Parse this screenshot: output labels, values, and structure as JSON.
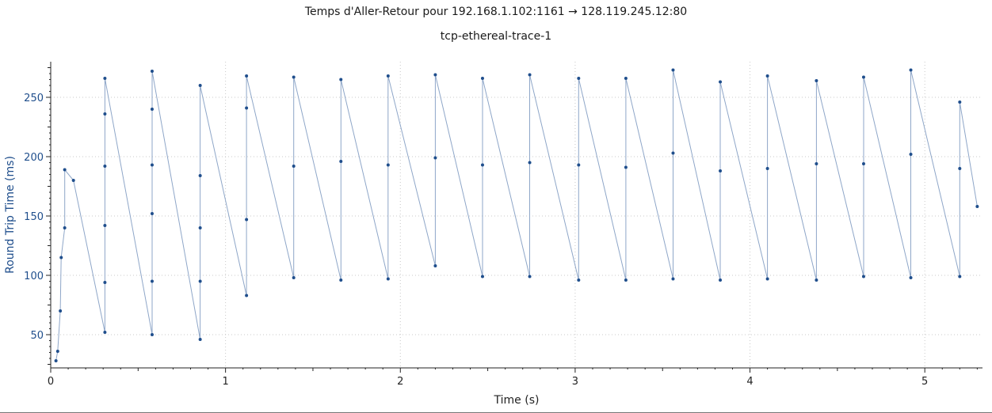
{
  "window": {
    "title": "Temps d'Aller-Retour pour 192.168.1.102:1161 → 128.119.245.12:80",
    "subtitle": "tcp-ethereal-trace-1"
  },
  "colors": {
    "series": "#1f4e8c",
    "line": "#8ea6c8",
    "axis_label": "#1f4e8c",
    "grid": "#c8c8c8"
  },
  "chart_data": {
    "type": "line",
    "title": "Temps d'Aller-Retour pour 192.168.1.102:1161 → 128.119.245.12:80",
    "subtitle": "tcp-ethereal-trace-1",
    "xlabel": "Time (s)",
    "ylabel": "Round Trip Time (ms)",
    "xlim": [
      0,
      5.33
    ],
    "ylim": [
      22,
      280
    ],
    "x_ticks": [
      0,
      1,
      2,
      3,
      4,
      5
    ],
    "y_ticks": [
      50,
      100,
      150,
      200,
      250
    ],
    "grid": true,
    "series": [
      {
        "points": [
          [
            0.03,
            28
          ],
          [
            0.04,
            36
          ],
          [
            0.055,
            70
          ],
          [
            0.06,
            115
          ],
          [
            0.08,
            140
          ],
          [
            0.08,
            189
          ],
          [
            0.13,
            180
          ],
          [
            0.31,
            52
          ],
          [
            0.31,
            94
          ],
          [
            0.31,
            142
          ],
          [
            0.31,
            192
          ],
          [
            0.31,
            236
          ],
          [
            0.31,
            266
          ],
          [
            0.58,
            50
          ],
          [
            0.58,
            95
          ],
          [
            0.58,
            152
          ],
          [
            0.58,
            193
          ],
          [
            0.58,
            240
          ],
          [
            0.58,
            272
          ],
          [
            0.855,
            46
          ],
          [
            0.855,
            95
          ],
          [
            0.855,
            140
          ],
          [
            0.855,
            184
          ],
          [
            0.855,
            260
          ],
          [
            1.12,
            83
          ],
          [
            1.12,
            147
          ],
          [
            1.12,
            241
          ],
          [
            1.12,
            268
          ],
          [
            1.39,
            98
          ],
          [
            1.39,
            192
          ],
          [
            1.39,
            267
          ],
          [
            1.66,
            96
          ],
          [
            1.66,
            196
          ],
          [
            1.66,
            265
          ],
          [
            1.93,
            97
          ],
          [
            1.93,
            193
          ],
          [
            1.93,
            268
          ],
          [
            2.2,
            108
          ],
          [
            2.2,
            199
          ],
          [
            2.2,
            269
          ],
          [
            2.47,
            99
          ],
          [
            2.47,
            193
          ],
          [
            2.47,
            266
          ],
          [
            2.74,
            99
          ],
          [
            2.74,
            195
          ],
          [
            2.74,
            269
          ],
          [
            3.02,
            96
          ],
          [
            3.02,
            193
          ],
          [
            3.02,
            266
          ],
          [
            3.29,
            96
          ],
          [
            3.29,
            191
          ],
          [
            3.29,
            266
          ],
          [
            3.56,
            97
          ],
          [
            3.56,
            203
          ],
          [
            3.56,
            273
          ],
          [
            3.83,
            96
          ],
          [
            3.83,
            188
          ],
          [
            3.83,
            263
          ],
          [
            4.1,
            97
          ],
          [
            4.1,
            190
          ],
          [
            4.1,
            268
          ],
          [
            4.38,
            96
          ],
          [
            4.38,
            194
          ],
          [
            4.38,
            264
          ],
          [
            4.65,
            99
          ],
          [
            4.65,
            194
          ],
          [
            4.65,
            267
          ],
          [
            4.92,
            98
          ],
          [
            4.92,
            202
          ],
          [
            4.92,
            273
          ],
          [
            5.2,
            99
          ],
          [
            5.2,
            190
          ],
          [
            5.2,
            246
          ],
          [
            5.3,
            158
          ]
        ]
      }
    ]
  }
}
